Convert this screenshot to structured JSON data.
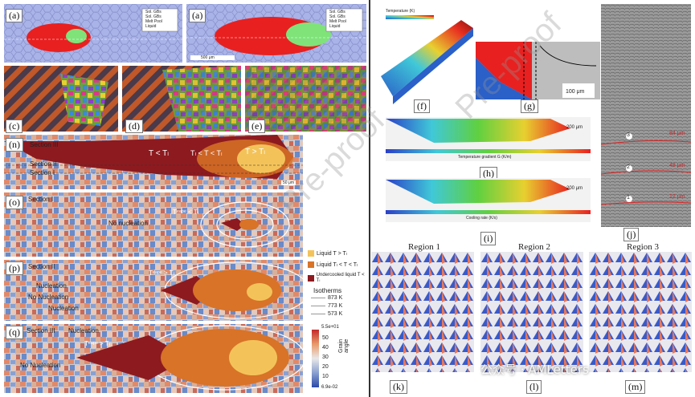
{
  "labels": {
    "a1": "(a)",
    "a2": "(a)",
    "c": "(c)",
    "d": "(d)",
    "e": "(e)",
    "n": "(n)",
    "o": "(o)",
    "p": "(p)",
    "q": "(q)",
    "f": "(f)",
    "g": "(g)",
    "h": "(h)",
    "i": "(i)",
    "j": "(j)",
    "k": "(k)",
    "l": "(l)",
    "m": "(m)"
  },
  "panel_a_legend": [
    "Sol. GBs",
    "Sol. GBs",
    "Melt Pool",
    "Liquid"
  ],
  "panel_a_scale": "500 μm",
  "sections": {
    "n_top": "Section III",
    "n_mid": "Section II",
    "n_bot": "Section I",
    "o": "Section I",
    "p": "Section II",
    "q": "Section III"
  },
  "n_zones": {
    "z1": "T < Tₗ",
    "z2": "Tₗ < T < Tₗ",
    "z3": "T > Tₗ"
  },
  "n_scale": "50 μm",
  "o_text": {
    "nucleation": "No nucleation",
    "ttext": "Tᵉᵃᵖᵉ < Tₗ"
  },
  "p_text": {
    "n1": "Nucleation",
    "n2": "No Nucleation",
    "n3": "Nucleation",
    "ttext": "Tᵉᵃᵖᵉ > Tₗ"
  },
  "q_text": {
    "n1": "Nucleation",
    "n2": "No Nucleation",
    "ttext": "Tᵉᵃᵖᵉ > Tₗ"
  },
  "liquid_legend": [
    {
      "label": "Liquid T > Tₗ",
      "color": "#f3c35a"
    },
    {
      "label": "Liquid Tₗ < T < Tₗ",
      "color": "#d87327"
    },
    {
      "label": "Undercooled liquid T < Tₗ",
      "color": "#8d1a1f"
    }
  ],
  "isotherms": {
    "title": "Isotherms",
    "values": [
      "873 K",
      "773 K",
      "573 K"
    ]
  },
  "colorbar": {
    "max": "5.5e+01",
    "ticks": [
      "50",
      "40",
      "30",
      "20",
      "10"
    ],
    "min": "6.9e-02",
    "label": "Grain angle"
  },
  "f_colorbar_title": "Temperature (K)",
  "g_scale": "100 μm",
  "h_scale": "200 μm",
  "i_scale": "200 μm",
  "h_axis_label": "Temperature gradient G (K/m)",
  "i_axis_label": "Cooling rate (K/s)",
  "j_marks": [
    {
      "num": "3",
      "label": "84 μm"
    },
    {
      "num": "2",
      "label": "48 μm"
    },
    {
      "num": "1",
      "label": "12 μm"
    }
  ],
  "regions": [
    "Region 1",
    "Region 2",
    "Region 3"
  ],
  "watermark": "Pre-proof",
  "footer_brand": "公众号 · AMLetters"
}
